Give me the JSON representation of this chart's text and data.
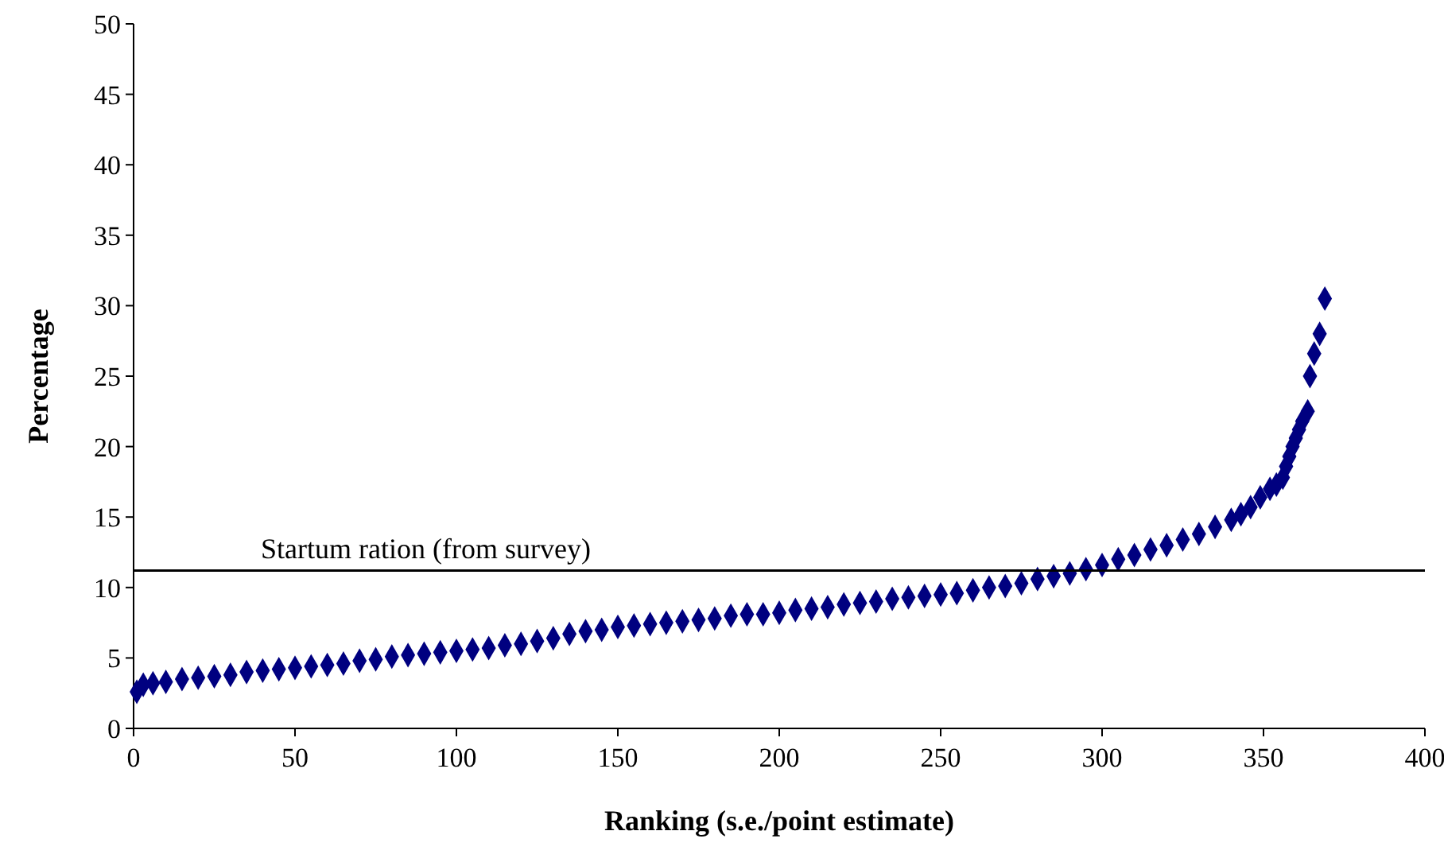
{
  "chart_data": {
    "type": "scatter",
    "xlabel": "Ranking (s.e./point estimate)",
    "ylabel": "Percentage",
    "xlim": [
      0,
      400
    ],
    "xticks": [
      0,
      50,
      100,
      150,
      200,
      250,
      300,
      350,
      400
    ],
    "ylim": [
      0,
      50
    ],
    "yticks": [
      0,
      5,
      10,
      15,
      20,
      25,
      30,
      35,
      40,
      45,
      50
    ],
    "marker": "diamond",
    "grid": false,
    "series": [
      {
        "color": "#000080",
        "x": [
          1,
          3,
          6,
          10,
          15,
          20,
          25,
          30,
          35,
          40,
          45,
          50,
          55,
          60,
          65,
          70,
          75,
          80,
          85,
          90,
          95,
          100,
          105,
          110,
          115,
          120,
          125,
          130,
          135,
          140,
          145,
          150,
          155,
          160,
          165,
          170,
          175,
          180,
          185,
          190,
          195,
          200,
          205,
          210,
          215,
          220,
          225,
          230,
          235,
          240,
          245,
          250,
          255,
          260,
          265,
          270,
          275,
          280,
          285,
          290,
          295,
          300,
          305,
          310,
          315,
          320,
          325,
          330,
          335,
          340,
          343,
          346,
          349,
          352,
          354,
          356,
          357,
          358,
          359,
          360,
          361,
          362,
          363.7,
          364.4,
          365.7,
          367.4,
          369
        ],
        "values": [
          2.6,
          3.1,
          3.2,
          3.3,
          3.5,
          3.6,
          3.7,
          3.8,
          4.0,
          4.1,
          4.2,
          4.3,
          4.4,
          4.5,
          4.6,
          4.8,
          4.9,
          5.1,
          5.2,
          5.3,
          5.4,
          5.5,
          5.6,
          5.7,
          5.9,
          6.0,
          6.2,
          6.4,
          6.7,
          6.9,
          7.0,
          7.2,
          7.3,
          7.4,
          7.5,
          7.6,
          7.7,
          7.8,
          8.0,
          8.1,
          8.1,
          8.2,
          8.4,
          8.5,
          8.6,
          8.8,
          8.9,
          9.0,
          9.2,
          9.3,
          9.4,
          9.5,
          9.6,
          9.8,
          10.0,
          10.1,
          10.3,
          10.6,
          10.8,
          11.0,
          11.3,
          11.6,
          12.0,
          12.3,
          12.7,
          13.0,
          13.4,
          13.8,
          14.3,
          14.8,
          15.2,
          15.7,
          16.4,
          17.0,
          17.3,
          17.8,
          18.6,
          19.3,
          20.0,
          20.6,
          21.2,
          21.8,
          22.5,
          25.0,
          26.6,
          28.0,
          30.5
        ]
      }
    ],
    "ref_lines": [
      {
        "axis": "y",
        "value": 11.2,
        "label": "Startum ration (from survey)",
        "color": "#000000"
      }
    ]
  }
}
